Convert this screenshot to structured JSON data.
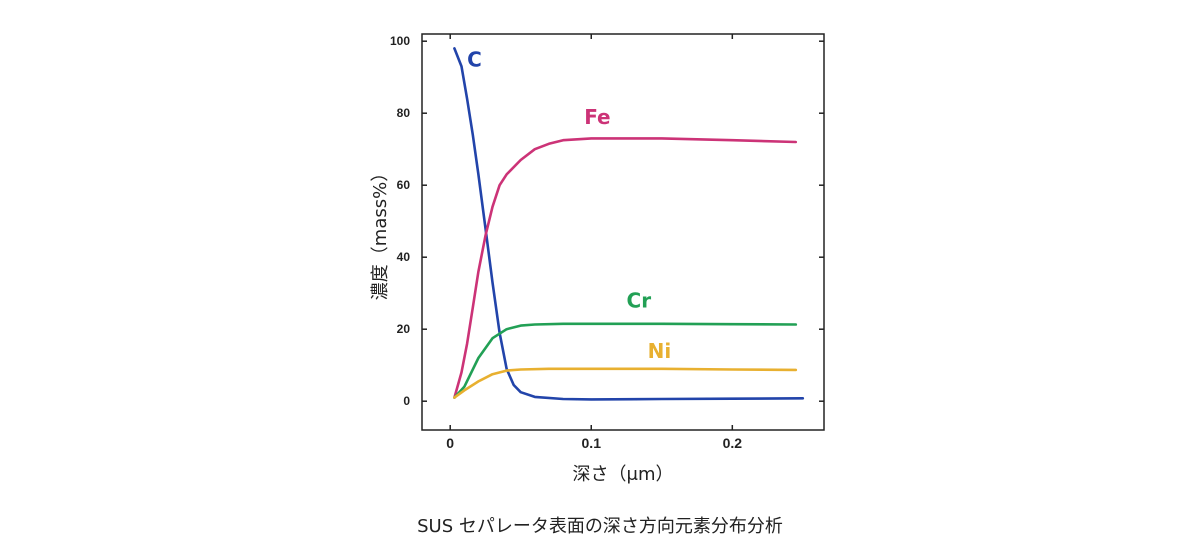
{
  "caption": "SUS セパレータ表面の深さ方向元素分布分析",
  "chart_data": {
    "type": "line",
    "title": "",
    "xlabel": "深さ（μm）",
    "ylabel": "濃度（mass%）",
    "xlim": [
      -0.02,
      0.265
    ],
    "ylim": [
      -8,
      102
    ],
    "x_ticks": [
      0,
      0.1,
      0.2
    ],
    "x_tick_labels": [
      "0",
      "0.1",
      "0.2"
    ],
    "y_ticks": [
      0,
      20,
      40,
      60,
      80,
      100
    ],
    "y_tick_labels": [
      "0",
      "20",
      "40",
      "60",
      "80",
      "100"
    ],
    "grid": false,
    "series": [
      {
        "name": "C",
        "color": "#2244aa",
        "points": [
          [
            0.003,
            98
          ],
          [
            0.008,
            93
          ],
          [
            0.012,
            84
          ],
          [
            0.016,
            74
          ],
          [
            0.02,
            63
          ],
          [
            0.025,
            48
          ],
          [
            0.03,
            33
          ],
          [
            0.035,
            19
          ],
          [
            0.04,
            9
          ],
          [
            0.045,
            4.5
          ],
          [
            0.05,
            2.5
          ],
          [
            0.06,
            1.2
          ],
          [
            0.08,
            0.6
          ],
          [
            0.1,
            0.5
          ],
          [
            0.15,
            0.6
          ],
          [
            0.2,
            0.7
          ],
          [
            0.25,
            0.8
          ]
        ]
      },
      {
        "name": "Fe",
        "color": "#cc3377",
        "points": [
          [
            0.003,
            1
          ],
          [
            0.008,
            8
          ],
          [
            0.012,
            16
          ],
          [
            0.016,
            26
          ],
          [
            0.02,
            36
          ],
          [
            0.025,
            46
          ],
          [
            0.03,
            54
          ],
          [
            0.035,
            60
          ],
          [
            0.04,
            63
          ],
          [
            0.05,
            67
          ],
          [
            0.06,
            70
          ],
          [
            0.07,
            71.5
          ],
          [
            0.08,
            72.5
          ],
          [
            0.1,
            73
          ],
          [
            0.15,
            73
          ],
          [
            0.2,
            72.5
          ],
          [
            0.245,
            72
          ]
        ]
      },
      {
        "name": "Cr",
        "color": "#22a055",
        "points": [
          [
            0.003,
            1
          ],
          [
            0.01,
            4
          ],
          [
            0.02,
            12
          ],
          [
            0.03,
            17.5
          ],
          [
            0.04,
            20
          ],
          [
            0.05,
            21
          ],
          [
            0.06,
            21.3
          ],
          [
            0.08,
            21.5
          ],
          [
            0.1,
            21.5
          ],
          [
            0.15,
            21.5
          ],
          [
            0.2,
            21.4
          ],
          [
            0.245,
            21.3
          ]
        ]
      },
      {
        "name": "Ni",
        "color": "#e8b030",
        "points": [
          [
            0.003,
            1
          ],
          [
            0.01,
            3
          ],
          [
            0.02,
            5.5
          ],
          [
            0.03,
            7.5
          ],
          [
            0.04,
            8.5
          ],
          [
            0.05,
            8.8
          ],
          [
            0.07,
            9
          ],
          [
            0.1,
            9
          ],
          [
            0.15,
            9
          ],
          [
            0.2,
            8.8
          ],
          [
            0.245,
            8.7
          ]
        ]
      }
    ],
    "series_labels": [
      {
        "text": "C",
        "x": 0.012,
        "y": 93
      },
      {
        "text": "Fe",
        "x": 0.095,
        "y": 77
      },
      {
        "text": "Cr",
        "x": 0.125,
        "y": 26
      },
      {
        "text": "Ni",
        "x": 0.14,
        "y": 12
      }
    ]
  }
}
